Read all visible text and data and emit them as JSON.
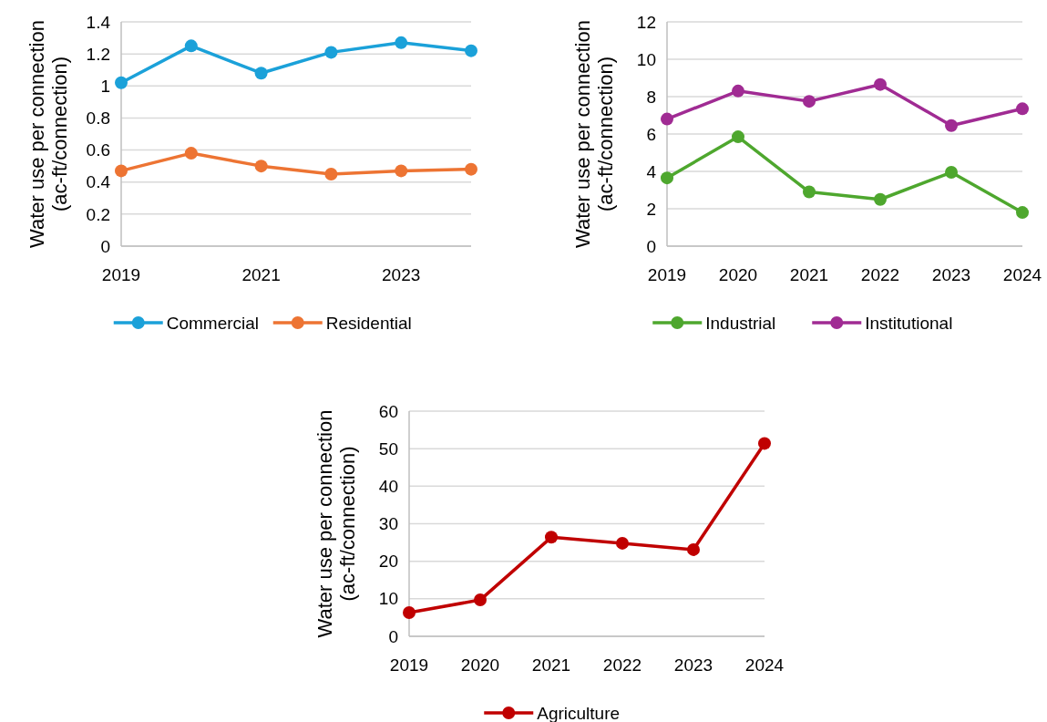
{
  "chart_data": [
    {
      "type": "line",
      "ylabel": "Water use per connection\n(ac-ft/connection)",
      "categories": [
        "2019",
        null,
        "2021",
        null,
        "2023",
        null
      ],
      "ylim": [
        0,
        1.4
      ],
      "yticks": [
        0,
        0.2,
        0.4,
        0.6,
        0.8,
        1,
        1.2,
        1.4
      ],
      "grid": "y",
      "legend": "bottom",
      "marker": "circle",
      "line_style": "solid",
      "series": [
        {
          "name": "Commercial",
          "color": "#1ba1d9",
          "values": [
            1.02,
            1.25,
            1.08,
            1.21,
            1.27,
            1.22
          ]
        },
        {
          "name": "Residential",
          "color": "#ed7433",
          "values": [
            0.47,
            0.58,
            0.5,
            0.45,
            0.47,
            0.48
          ]
        }
      ]
    },
    {
      "type": "line",
      "ylabel": "Water use per connection\n(ac-ft/connection)",
      "categories": [
        "2019",
        "2020",
        "2021",
        "2022",
        "2023",
        "2024"
      ],
      "ylim": [
        0,
        12
      ],
      "yticks": [
        0,
        2,
        4,
        6,
        8,
        10,
        12
      ],
      "grid": "y",
      "legend": "bottom",
      "marker": "circle",
      "line_style": "solid",
      "series": [
        {
          "name": "Industrial",
          "color": "#4ea72e",
          "values": [
            3.65,
            5.85,
            2.9,
            2.5,
            3.95,
            1.8
          ]
        },
        {
          "name": "Institutional",
          "color": "#a02b93",
          "values": [
            6.8,
            8.3,
            7.75,
            8.65,
            6.45,
            7.35
          ]
        }
      ]
    },
    {
      "type": "line",
      "ylabel": "Water use per connection\n(ac-ft/connection)",
      "categories": [
        "2019",
        "2020",
        "2021",
        "2022",
        "2023",
        "2024"
      ],
      "ylim": [
        0,
        60
      ],
      "yticks": [
        0,
        10,
        20,
        30,
        40,
        50,
        60
      ],
      "grid": "y",
      "legend": "bottom",
      "marker": "circle",
      "line_style": "solid",
      "series": [
        {
          "name": "Agriculture",
          "color": "#c00000",
          "values": [
            6.3,
            9.7,
            26.4,
            24.8,
            23.1,
            51.4
          ]
        }
      ]
    }
  ]
}
